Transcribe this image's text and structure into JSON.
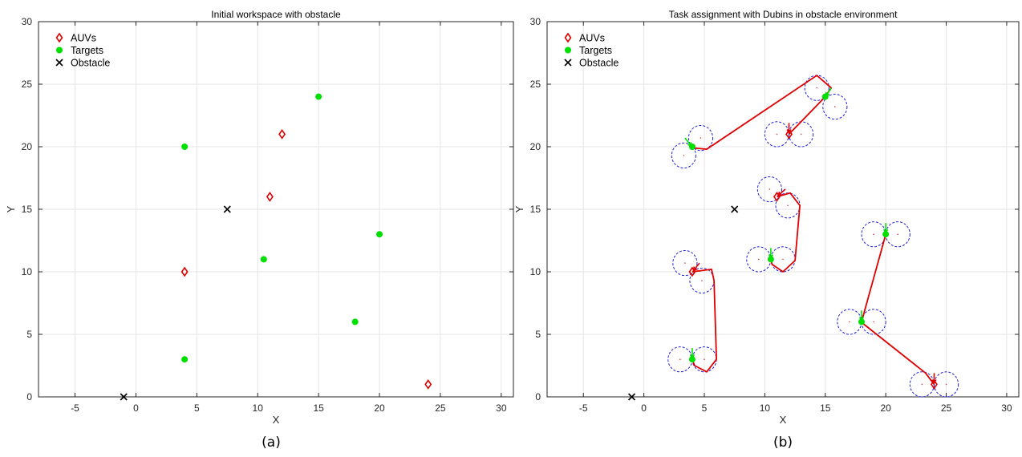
{
  "chart_data": [
    {
      "type": "scatter",
      "title": "Initial workspace with obstacle",
      "xlabel": "X",
      "ylabel": "Y",
      "xlim": [
        -8,
        31
      ],
      "ylim": [
        0,
        30
      ],
      "xticks": [
        -5,
        0,
        5,
        10,
        15,
        20,
        25,
        30
      ],
      "yticks": [
        0,
        5,
        10,
        15,
        20,
        25,
        30
      ],
      "grid": true,
      "legend_position": "top-left",
      "caption": "(a)",
      "series": [
        {
          "name": "AUVs",
          "marker": "diamond",
          "color": "#e00000",
          "points": [
            [
              12,
              21
            ],
            [
              11,
              16
            ],
            [
              4,
              10
            ],
            [
              24,
              1
            ]
          ]
        },
        {
          "name": "Targets",
          "marker": "circle",
          "color": "#00e000",
          "points": [
            [
              15,
              24
            ],
            [
              4,
              20
            ],
            [
              20,
              13
            ],
            [
              10.5,
              11
            ],
            [
              18,
              6
            ],
            [
              4,
              3
            ]
          ]
        },
        {
          "name": "Obstacle",
          "marker": "x",
          "color": "#000000",
          "points": [
            [
              7.5,
              15
            ],
            [
              -1,
              0
            ]
          ]
        }
      ]
    },
    {
      "type": "line",
      "title": "Task assignment with Dubins in obstacle environment",
      "xlabel": "X",
      "ylabel": "Y",
      "xlim": [
        -8,
        31
      ],
      "ylim": [
        0,
        30
      ],
      "xticks": [
        -5,
        0,
        5,
        10,
        15,
        20,
        25,
        30
      ],
      "yticks": [
        0,
        5,
        10,
        15,
        20,
        25,
        30
      ],
      "grid": true,
      "legend_position": "top-left",
      "caption": "(b)",
      "turning_radius": 1,
      "series": [
        {
          "name": "AUVs",
          "marker": "diamond",
          "color": "#e00000",
          "points": [
            [
              12,
              21
            ],
            [
              11,
              16
            ],
            [
              4,
              10
            ],
            [
              24,
              1
            ]
          ]
        },
        {
          "name": "Targets",
          "marker": "circle",
          "color": "#00e000",
          "points": [
            [
              15,
              24
            ],
            [
              4,
              20
            ],
            [
              20,
              13
            ],
            [
              10.5,
              11
            ],
            [
              18,
              6
            ],
            [
              4,
              3
            ]
          ]
        },
        {
          "name": "Obstacle",
          "marker": "x",
          "color": "#000000",
          "points": [
            [
              7.5,
              15
            ],
            [
              -1,
              0
            ]
          ]
        }
      ],
      "turning_circles": [
        [
          11,
          21
        ],
        [
          13,
          21
        ],
        [
          14.3,
          24.7
        ],
        [
          15.8,
          23.2
        ],
        [
          4.7,
          20.7
        ],
        [
          3.3,
          19.3
        ],
        [
          10.4,
          16.6
        ],
        [
          11.9,
          15.3
        ],
        [
          9.5,
          11
        ],
        [
          11.5,
          11
        ],
        [
          3.4,
          10.7
        ],
        [
          4.8,
          9.3
        ],
        [
          3,
          3
        ],
        [
          5,
          3
        ],
        [
          19,
          13
        ],
        [
          21,
          13
        ],
        [
          17,
          6
        ],
        [
          19,
          6
        ],
        [
          23,
          1
        ],
        [
          25,
          1
        ]
      ],
      "paths": [
        {
          "color": "#e00000",
          "points": [
            [
              12,
              21
            ],
            [
              14.9,
              23.9
            ],
            [
              15.5,
              24.7
            ],
            [
              14.3,
              25.7
            ],
            [
              5.2,
              19.8
            ],
            [
              4.2,
              19.9
            ],
            [
              4,
              20
            ]
          ]
        },
        {
          "color": "#e00000",
          "points": [
            [
              11,
              16
            ],
            [
              12.1,
              16.3
            ],
            [
              12.9,
              15.3
            ],
            [
              12.5,
              10.9
            ],
            [
              11.5,
              10
            ],
            [
              10.6,
              10.6
            ],
            [
              10.5,
              11
            ]
          ]
        },
        {
          "color": "#e00000",
          "points": [
            [
              4,
              10
            ],
            [
              5.6,
              10.2
            ],
            [
              5.8,
              9.3
            ],
            [
              6,
              3
            ],
            [
              5.2,
              2
            ],
            [
              4.2,
              2.5
            ],
            [
              4,
              3
            ]
          ]
        },
        {
          "color": "#e00000",
          "points": [
            [
              24,
              1
            ],
            [
              23.3,
              1.9
            ],
            [
              18.2,
              5.8
            ],
            [
              18,
              6
            ],
            [
              20,
              13
            ]
          ]
        }
      ],
      "heading_arrows": [
        {
          "color": "#e00000",
          "from": [
            12,
            21.9
          ],
          "to": [
            12,
            21.1
          ]
        },
        {
          "color": "#e00000",
          "from": [
            11.7,
            16.6
          ],
          "to": [
            11.1,
            16.1
          ]
        },
        {
          "color": "#e00000",
          "from": [
            4.6,
            10.7
          ],
          "to": [
            4.1,
            10.1
          ]
        },
        {
          "color": "#e00000",
          "from": [
            24,
            1.9
          ],
          "to": [
            24,
            1.1
          ]
        },
        {
          "color": "#00e000",
          "from": [
            15.5,
            24.7
          ],
          "to": [
            15.05,
            24.05
          ]
        },
        {
          "color": "#00e000",
          "from": [
            3.4,
            20.7
          ],
          "to": [
            3.95,
            20.05
          ]
        },
        {
          "color": "#00e000",
          "from": [
            20,
            13.9
          ],
          "to": [
            20,
            13.1
          ]
        },
        {
          "color": "#00e000",
          "from": [
            10.5,
            11.9
          ],
          "to": [
            10.5,
            11.1
          ]
        },
        {
          "color": "#00e000",
          "from": [
            18,
            6.9
          ],
          "to": [
            18,
            6.1
          ]
        },
        {
          "color": "#00e000",
          "from": [
            4,
            3.9
          ],
          "to": [
            4,
            3.1
          ]
        }
      ]
    }
  ]
}
